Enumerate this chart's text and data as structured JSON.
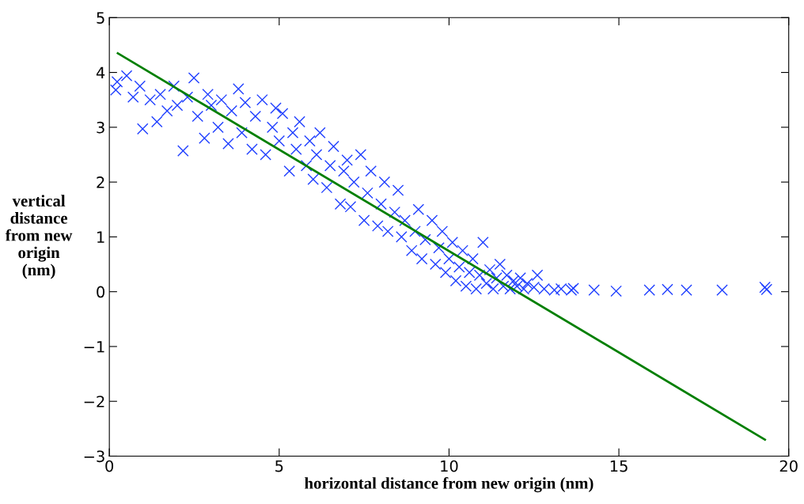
{
  "chart_data": {
    "type": "scatter",
    "xlabel": "horizontal distance from new origin (nm)",
    "ylabel": "vertical\ndistance\nfrom new\norigin\n(nm)",
    "xlim": [
      0,
      20
    ],
    "ylim": [
      -3,
      5
    ],
    "xticks": [
      0,
      5,
      10,
      15,
      20
    ],
    "yticks": [
      {
        "value": -3,
        "label": "−3"
      },
      {
        "value": -2,
        "label": "−2"
      },
      {
        "value": -1,
        "label": "−1"
      },
      0,
      1,
      2,
      3,
      4,
      5
    ],
    "grid": false,
    "legend": false,
    "series": [
      {
        "marker": "cross",
        "color": "#1f3fff",
        "x": [
          0.19,
          0.23,
          0.51,
          0.7,
          0.9,
          0.98,
          1.2,
          1.4,
          1.5,
          1.7,
          1.9,
          2.0,
          2.17,
          2.3,
          2.49,
          2.6,
          2.8,
          2.9,
          3.0,
          3.2,
          3.3,
          3.5,
          3.6,
          3.8,
          3.9,
          4.0,
          4.2,
          4.3,
          4.5,
          4.6,
          4.8,
          4.9,
          5.0,
          5.1,
          5.3,
          5.4,
          5.5,
          5.6,
          5.8,
          5.9,
          6.0,
          6.1,
          6.2,
          6.4,
          6.5,
          6.6,
          6.8,
          6.9,
          7.0,
          7.1,
          7.2,
          7.4,
          7.5,
          7.6,
          7.7,
          7.9,
          8.0,
          8.1,
          8.2,
          8.4,
          8.5,
          8.6,
          8.7,
          8.9,
          9.0,
          9.1,
          9.2,
          9.3,
          9.5,
          9.6,
          9.7,
          9.8,
          9.9,
          10.0,
          10.1,
          10.2,
          10.3,
          10.4,
          10.5,
          10.6,
          10.7,
          10.8,
          10.9,
          11.0,
          11.1,
          11.2,
          11.3,
          11.4,
          11.5,
          11.6,
          11.7,
          11.8,
          11.9,
          12.0,
          12.1,
          12.2,
          12.3,
          12.5,
          12.6,
          12.8,
          13.1,
          13.3,
          13.6,
          13.66,
          14.27,
          14.92,
          15.9,
          16.43,
          16.99,
          18.04,
          19.3,
          19.35
        ],
        "values": [
          3.68,
          3.83,
          3.94,
          3.55,
          3.75,
          2.97,
          3.5,
          3.1,
          3.6,
          3.3,
          3.75,
          3.4,
          2.57,
          3.55,
          3.9,
          3.2,
          2.8,
          3.6,
          3.4,
          3.0,
          3.5,
          2.7,
          3.3,
          3.7,
          2.9,
          3.45,
          2.6,
          3.2,
          3.5,
          2.5,
          3.0,
          3.35,
          2.75,
          3.25,
          2.2,
          2.9,
          2.6,
          3.1,
          2.3,
          2.75,
          2.05,
          2.5,
          2.9,
          1.9,
          2.3,
          2.65,
          1.6,
          2.2,
          2.4,
          1.55,
          2.0,
          2.5,
          1.3,
          1.8,
          2.2,
          1.2,
          1.6,
          2.0,
          1.1,
          1.45,
          1.85,
          1.0,
          1.3,
          0.75,
          1.1,
          1.5,
          0.6,
          0.95,
          1.3,
          0.5,
          0.8,
          1.1,
          0.35,
          0.6,
          0.9,
          0.2,
          0.45,
          0.75,
          0.1,
          0.35,
          0.6,
          0.05,
          0.3,
          0.9,
          0.15,
          0.4,
          0.05,
          0.25,
          0.5,
          0.1,
          0.3,
          0.05,
          0.2,
          0.1,
          0.25,
          0.05,
          0.15,
          0.08,
          0.3,
          0.05,
          0.03,
          0.05,
          0.03,
          0.06,
          0.03,
          0.01,
          0.03,
          0.04,
          0.03,
          0.03,
          0.08,
          0.04
        ]
      },
      {
        "type": "line",
        "color": "#007f00",
        "line_style": "solid",
        "marker": "none",
        "x": [
          0.25,
          19.3
        ],
        "values": [
          4.35,
          -2.7
        ]
      }
    ]
  }
}
